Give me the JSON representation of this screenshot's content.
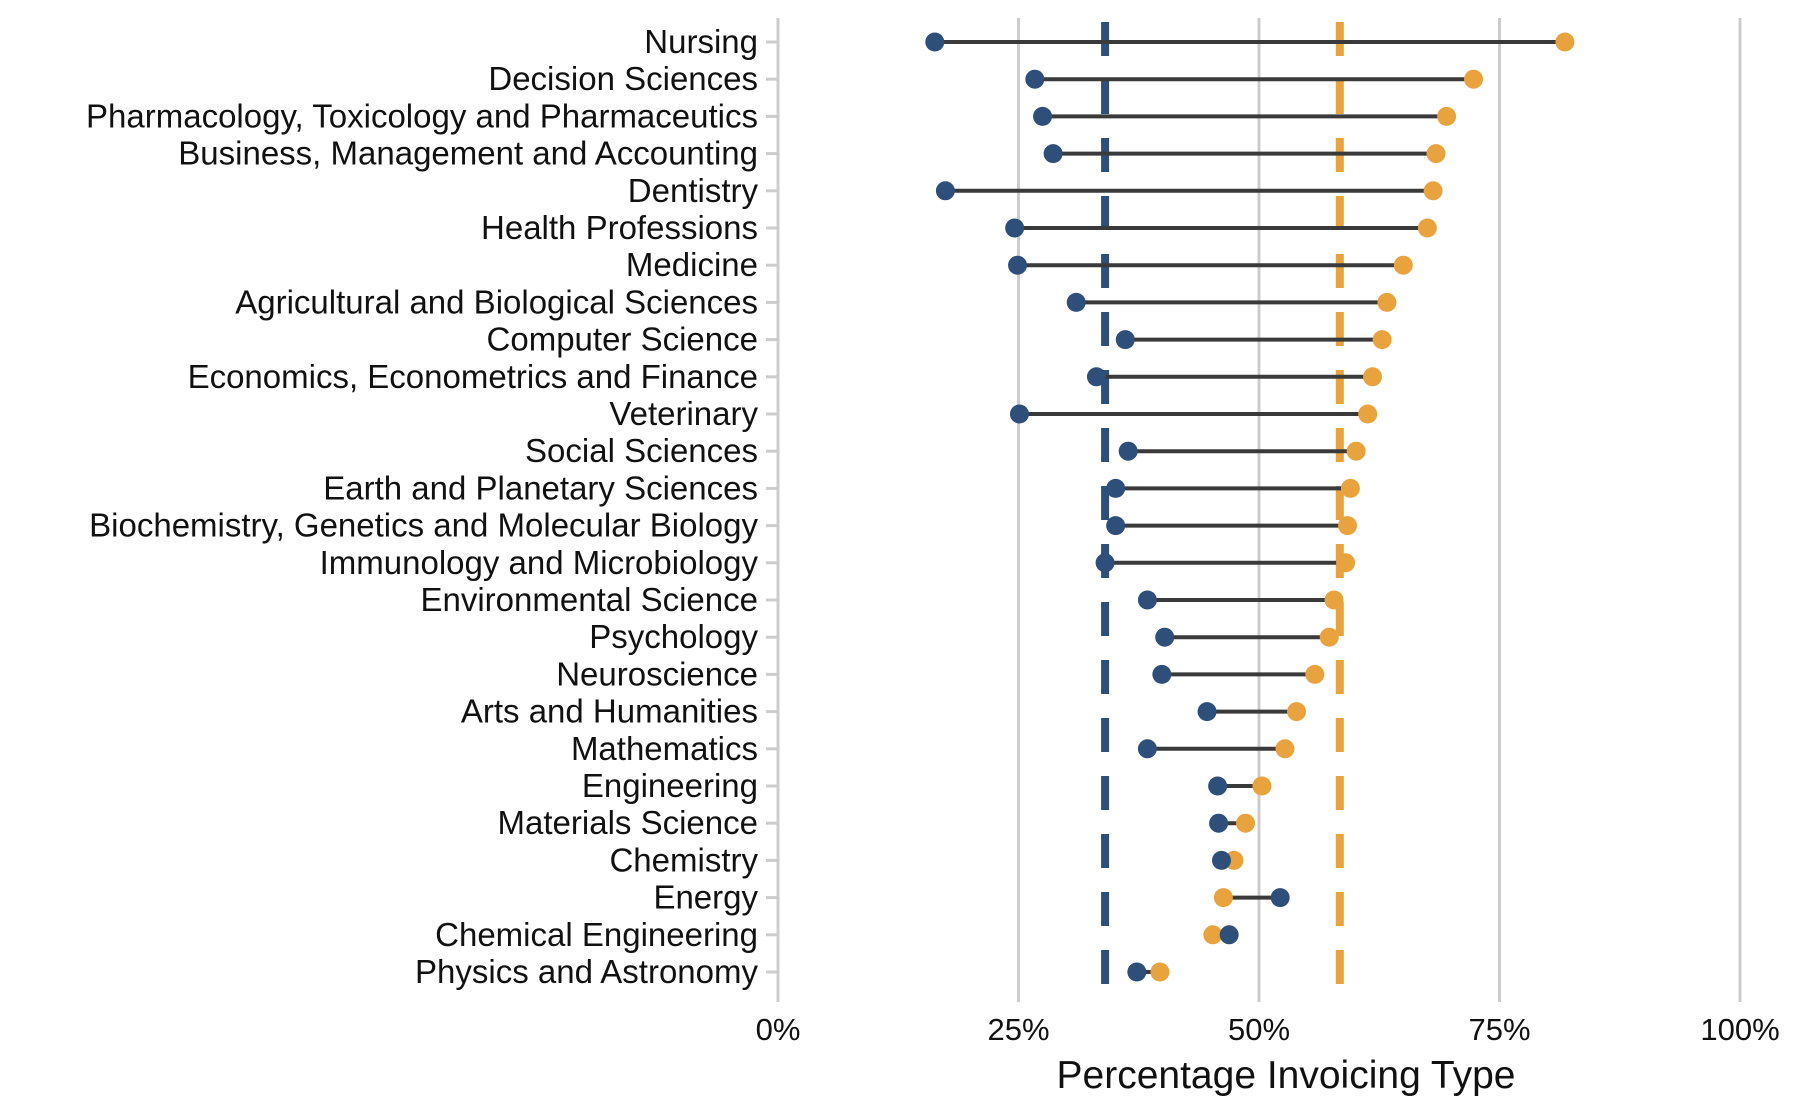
{
  "chart_data": {
    "type": "dumbbell",
    "xlabel": "Percentage Invoicing Type",
    "xlim": [
      0,
      100
    ],
    "x_ticks": [
      0,
      25,
      50,
      75,
      100
    ],
    "x_tick_labels": [
      "0%",
      "25%",
      "50%",
      "75%",
      "100%"
    ],
    "grid": "vertical major gridlines",
    "colors": {
      "series_a": "#2e4f7a",
      "series_b": "#e8a33f",
      "connector": "#3a3a3a",
      "grid": "#cccccc"
    },
    "reference_lines": [
      {
        "value": 34,
        "color": "#2e4f7a",
        "style": "dashed"
      },
      {
        "value": 58.4,
        "color": "#e8a33f",
        "style": "dashed"
      }
    ],
    "categories": [
      "Nursing",
      "Decision Sciences",
      "Pharmacology, Toxicology and Pharmaceutics",
      "Business, Management and Accounting",
      "Dentistry",
      "Health Professions",
      "Medicine",
      "Agricultural and Biological Sciences",
      "Computer Science",
      "Economics, Econometrics and Finance",
      "Veterinary",
      "Social Sciences",
      "Earth and Planetary Sciences",
      "Biochemistry, Genetics and Molecular Biology",
      "Immunology and Microbiology",
      "Environmental Science",
      "Psychology",
      "Neuroscience",
      "Arts and Humanities",
      "Mathematics",
      "Engineering",
      "Materials Science",
      "Chemistry",
      "Energy",
      "Chemical Engineering",
      "Physics and Astronomy"
    ],
    "series": [
      {
        "color": "#2e4f7a",
        "values": [
          16.3,
          26.7,
          27.5,
          28.6,
          17.4,
          24.6,
          24.9,
          31.0,
          36.1,
          33.1,
          25.1,
          36.4,
          35.1,
          35.1,
          34.0,
          38.4,
          40.2,
          39.9,
          44.6,
          38.4,
          45.7,
          45.8,
          46.1,
          52.2,
          46.9,
          37.3
        ]
      },
      {
        "color": "#e8a33f",
        "values": [
          81.8,
          72.3,
          69.5,
          68.4,
          68.1,
          67.5,
          65.0,
          63.3,
          62.8,
          61.8,
          61.3,
          60.1,
          59.5,
          59.2,
          59.0,
          57.8,
          57.3,
          55.8,
          53.9,
          52.7,
          50.3,
          48.6,
          47.4,
          46.3,
          45.2,
          39.7
        ]
      }
    ]
  }
}
